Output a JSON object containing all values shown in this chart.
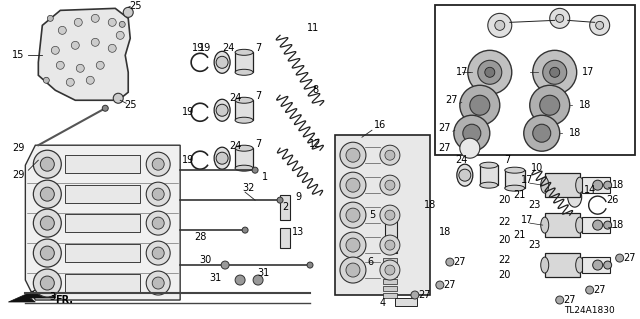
{
  "bg_color": "#ffffff",
  "line_color": "#000000",
  "text_color": "#000000",
  "diagram_code": "TL24A1830",
  "figsize": [
    6.4,
    3.19
  ],
  "dpi": 100
}
